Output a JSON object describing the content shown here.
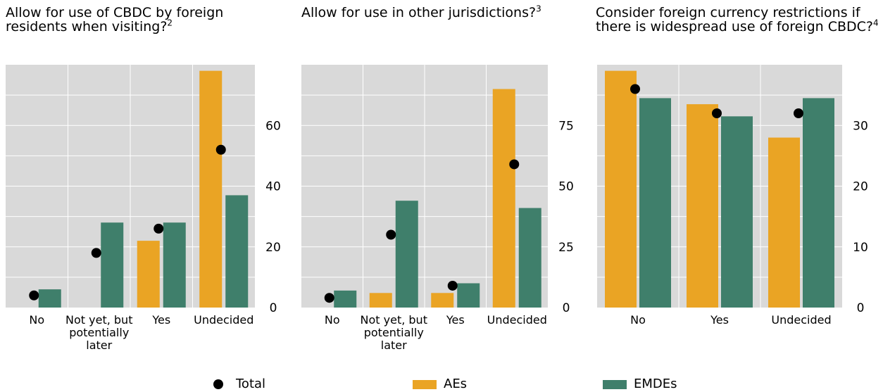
{
  "colors": {
    "aes": "#EAA424",
    "emdes": "#3F7F6B",
    "total": "#000000",
    "panel_bg": "#D9D9D9",
    "grid": "#FFFFFF"
  },
  "panels": [
    {
      "title": "Allow for use of CBDC by foreign residents when visiting?",
      "footnote": "2"
    },
    {
      "title": "Allow for use in other jurisdictions?",
      "footnote": "3"
    },
    {
      "title": "Consider foreign currency restrictions if there is widespread use of foreign CBDC?",
      "footnote": "4"
    }
  ],
  "chart_data": [
    {
      "type": "bar",
      "categories": [
        "No",
        "Not yet, but potentially later",
        "Yes",
        "Undecided"
      ],
      "series": [
        {
          "name": "AEs",
          "values": [
            0,
            0,
            22,
            78
          ]
        },
        {
          "name": "EMDEs",
          "values": [
            6,
            28,
            28,
            37
          ]
        },
        {
          "name": "Total",
          "values": [
            4,
            18,
            26,
            52
          ]
        }
      ],
      "yticks": [
        0,
        20,
        40,
        60
      ],
      "ylim": [
        0,
        80
      ]
    },
    {
      "type": "bar",
      "categories": [
        "No",
        "Not yet, but potentially later",
        "Yes",
        "Undecided"
      ],
      "series": [
        {
          "name": "AEs",
          "values": [
            0,
            6,
            6,
            90
          ]
        },
        {
          "name": "EMDEs",
          "values": [
            7,
            44,
            10,
            41
          ]
        },
        {
          "name": "Total",
          "values": [
            4,
            30,
            9,
            59
          ]
        }
      ],
      "yticks": [
        0,
        25,
        50,
        75
      ],
      "ylim": [
        0,
        100
      ]
    },
    {
      "type": "bar",
      "categories": [
        "No",
        "Yes",
        "Undecided"
      ],
      "series": [
        {
          "name": "AEs",
          "values": [
            39,
            33.5,
            28
          ]
        },
        {
          "name": "EMDEs",
          "values": [
            34.5,
            31.5,
            34.5
          ]
        },
        {
          "name": "Total",
          "values": [
            36,
            32,
            32
          ]
        }
      ],
      "yticks": [
        0,
        10,
        20,
        30
      ],
      "ylim": [
        0,
        40
      ]
    }
  ],
  "legend": {
    "total": "Total",
    "aes": "AEs",
    "emdes": "EMDEs"
  }
}
